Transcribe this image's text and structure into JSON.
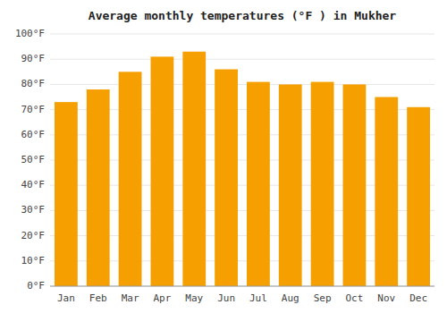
{
  "chart_data": {
    "type": "bar",
    "title": "Average monthly temperatures (°F ) in Mukher",
    "categories": [
      "Jan",
      "Feb",
      "Mar",
      "Apr",
      "May",
      "Jun",
      "Jul",
      "Aug",
      "Sep",
      "Oct",
      "Nov",
      "Dec"
    ],
    "values": [
      73,
      78,
      85,
      91,
      93,
      86,
      81,
      80,
      81,
      80,
      75,
      71
    ],
    "color": "#F5A000",
    "ylim": [
      0,
      100
    ],
    "yticks": [
      {
        "value": 0,
        "label": "0°F"
      },
      {
        "value": 10,
        "label": "10°F"
      },
      {
        "value": 20,
        "label": "20°F"
      },
      {
        "value": 30,
        "label": "30°F"
      },
      {
        "value": 40,
        "label": "40°F"
      },
      {
        "value": 50,
        "label": "50°F"
      },
      {
        "value": 60,
        "label": "60°F"
      },
      {
        "value": 70,
        "label": "70°F"
      },
      {
        "value": 80,
        "label": "80°F"
      },
      {
        "value": 90,
        "label": "90°F"
      },
      {
        "value": 100,
        "label": "100°F"
      }
    ],
    "grid": true
  }
}
